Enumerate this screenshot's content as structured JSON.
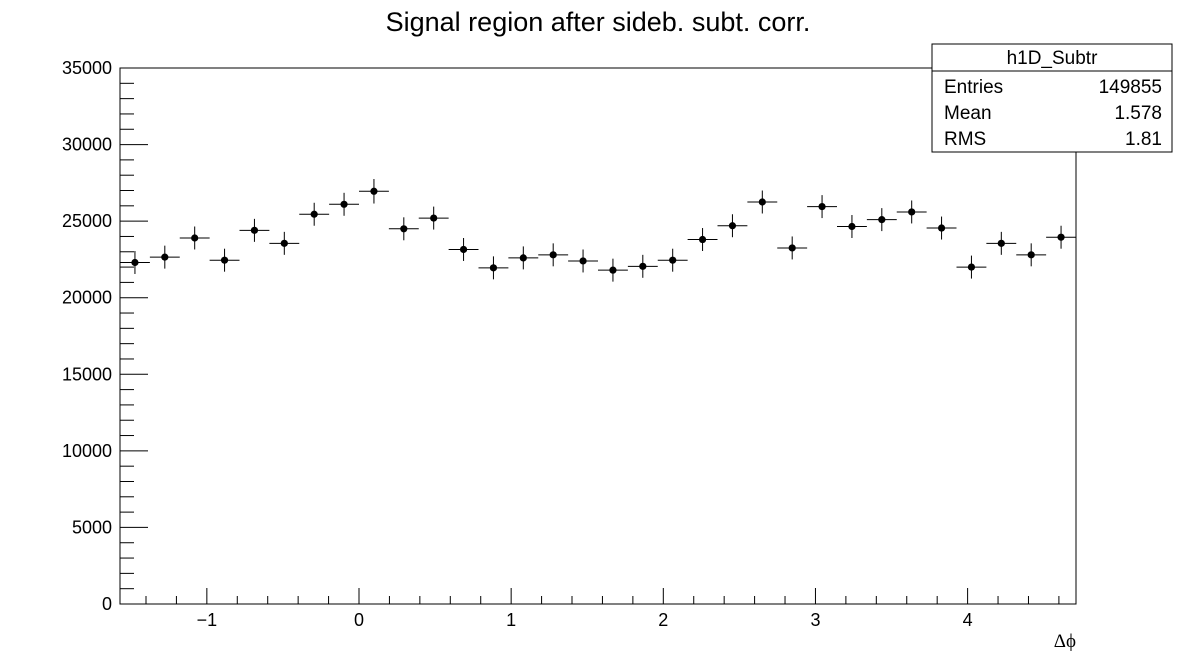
{
  "chart_data": {
    "type": "scatter",
    "title": "Signal region after sideb. subt. corr.",
    "xlabel": "Δϕ",
    "ylabel": "",
    "xlim": [
      -1.5708,
      4.7124
    ],
    "ylim": [
      0,
      35000
    ],
    "x_ticks": [
      -1,
      0,
      1,
      2,
      3,
      4
    ],
    "x_tick_labels": [
      "−1",
      "0",
      "1",
      "2",
      "3",
      "4"
    ],
    "y_ticks": [
      0,
      5000,
      10000,
      15000,
      20000,
      25000,
      30000,
      35000
    ],
    "y_tick_labels": [
      "0",
      "5000",
      "10000",
      "15000",
      "20000",
      "25000",
      "30000",
      "35000"
    ],
    "grid": false,
    "legend": "none",
    "marker_color": "#000000",
    "series": [
      {
        "x": [
          -1.4726,
          -1.2763,
          -1.0799,
          -0.8836,
          -0.6872,
          -0.4909,
          -0.2945,
          -0.0982,
          0.0982,
          0.2945,
          0.4909,
          0.6872,
          0.8836,
          1.0799,
          1.2763,
          1.4726,
          1.669,
          1.8653,
          2.0617,
          2.258,
          2.4544,
          2.6507,
          2.8471,
          3.0434,
          3.2398,
          3.4361,
          3.6325,
          3.8288,
          4.0252,
          4.2215,
          4.4179,
          4.6142
        ],
        "y": [
          22300,
          22650,
          23900,
          22450,
          24400,
          23550,
          25450,
          26100,
          26950,
          24500,
          25200,
          23150,
          21950,
          22600,
          22800,
          22400,
          21800,
          22050,
          22450,
          23800,
          24700,
          26250,
          23250,
          25950,
          24650,
          25100,
          25600,
          24550,
          22000,
          23550,
          22800,
          23950
        ],
        "y_err": [
          750,
          750,
          750,
          750,
          750,
          750,
          750,
          750,
          800,
          750,
          750,
          750,
          750,
          750,
          750,
          750,
          750,
          750,
          750,
          750,
          750,
          750,
          750,
          750,
          750,
          750,
          750,
          750,
          750,
          750,
          750,
          750
        ],
        "x_halfwidth": 0.0982
      }
    ]
  },
  "stats_box": {
    "name": "h1D_Subtr",
    "rows": [
      {
        "label": "Entries",
        "value": "149855"
      },
      {
        "label": "Mean",
        "value": "1.578"
      },
      {
        "label": "RMS",
        "value": "1.81"
      }
    ]
  }
}
